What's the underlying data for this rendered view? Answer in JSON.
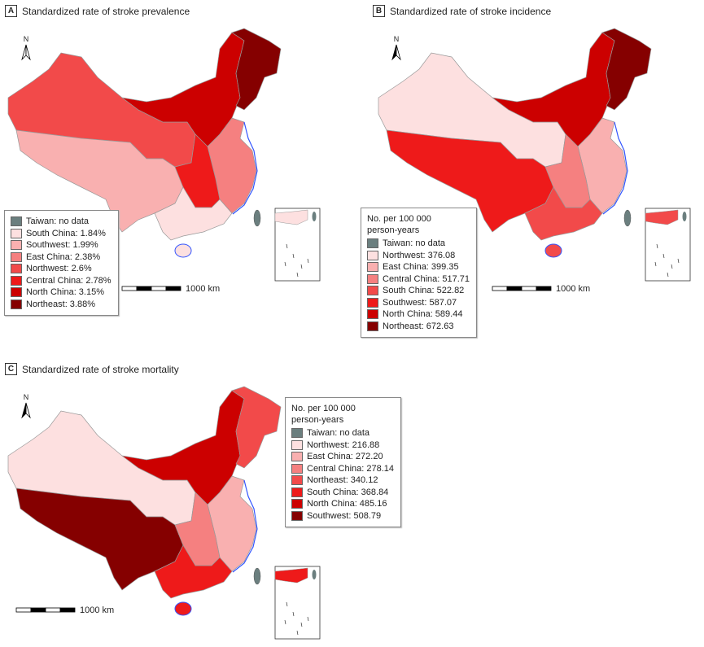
{
  "colors": {
    "ramp": [
      "#fde0e0",
      "#f9b0b0",
      "#f58080",
      "#f24a4a",
      "#ee1a1a",
      "#cc0000",
      "#850000"
    ],
    "taiwan": "#6b7f7f",
    "coast": "#3355ff"
  },
  "scale_label": "1000 km",
  "north_label": "N",
  "panels": [
    {
      "letter": "A",
      "title": "Standardized rate of stroke prevalence",
      "legend_title": "",
      "items": [
        {
          "label": "Taiwan: no data",
          "region": "Taiwan"
        },
        {
          "label": "South China: 1.84%",
          "region": "South China",
          "value": 1.84
        },
        {
          "label": "Southwest: 1.99%",
          "region": "Southwest",
          "value": 1.99
        },
        {
          "label": "East China: 2.38%",
          "region": "East China",
          "value": 2.38
        },
        {
          "label": "Northwest: 2.6%",
          "region": "Northwest",
          "value": 2.6
        },
        {
          "label": "Central China: 2.78%",
          "region": "Central China",
          "value": 2.78
        },
        {
          "label": "North China: 3.15%",
          "region": "North China",
          "value": 3.15
        },
        {
          "label": "Northeast: 3.88%",
          "region": "Northeast",
          "value": 3.88
        }
      ]
    },
    {
      "letter": "B",
      "title": "Standardized rate of stroke incidence",
      "legend_title": "No. per 100 000 person-years",
      "items": [
        {
          "label": "Taiwan: no data",
          "region": "Taiwan"
        },
        {
          "label": "Northwest: 376.08",
          "region": "Northwest",
          "value": 376.08
        },
        {
          "label": "East China: 399.35",
          "region": "East China",
          "value": 399.35
        },
        {
          "label": "Central China: 517.71",
          "region": "Central China",
          "value": 517.71
        },
        {
          "label": "South China: 522.82",
          "region": "South China",
          "value": 522.82
        },
        {
          "label": "Southwest: 587.07",
          "region": "Southwest",
          "value": 587.07
        },
        {
          "label": "North China: 589.44",
          "region": "North China",
          "value": 589.44
        },
        {
          "label": "Northeast: 672.63",
          "region": "Northeast",
          "value": 672.63
        }
      ]
    },
    {
      "letter": "C",
      "title": "Standardized rate of stroke mortality",
      "legend_title": "No. per 100 000 person-years",
      "items": [
        {
          "label": "Taiwan: no data",
          "region": "Taiwan"
        },
        {
          "label": "Northwest: 216.88",
          "region": "Northwest",
          "value": 216.88
        },
        {
          "label": "East China: 272.20",
          "region": "East China",
          "value": 272.2
        },
        {
          "label": "Central China: 278.14",
          "region": "Central China",
          "value": 278.14
        },
        {
          "label": "Northeast: 340.12",
          "region": "Northeast",
          "value": 340.12
        },
        {
          "label": "South China: 368.84",
          "region": "South China",
          "value": 368.84
        },
        {
          "label": "North China: 485.16",
          "region": "North China",
          "value": 485.16
        },
        {
          "label": "Southwest: 508.79",
          "region": "Southwest",
          "value": 508.79
        }
      ]
    }
  ]
}
